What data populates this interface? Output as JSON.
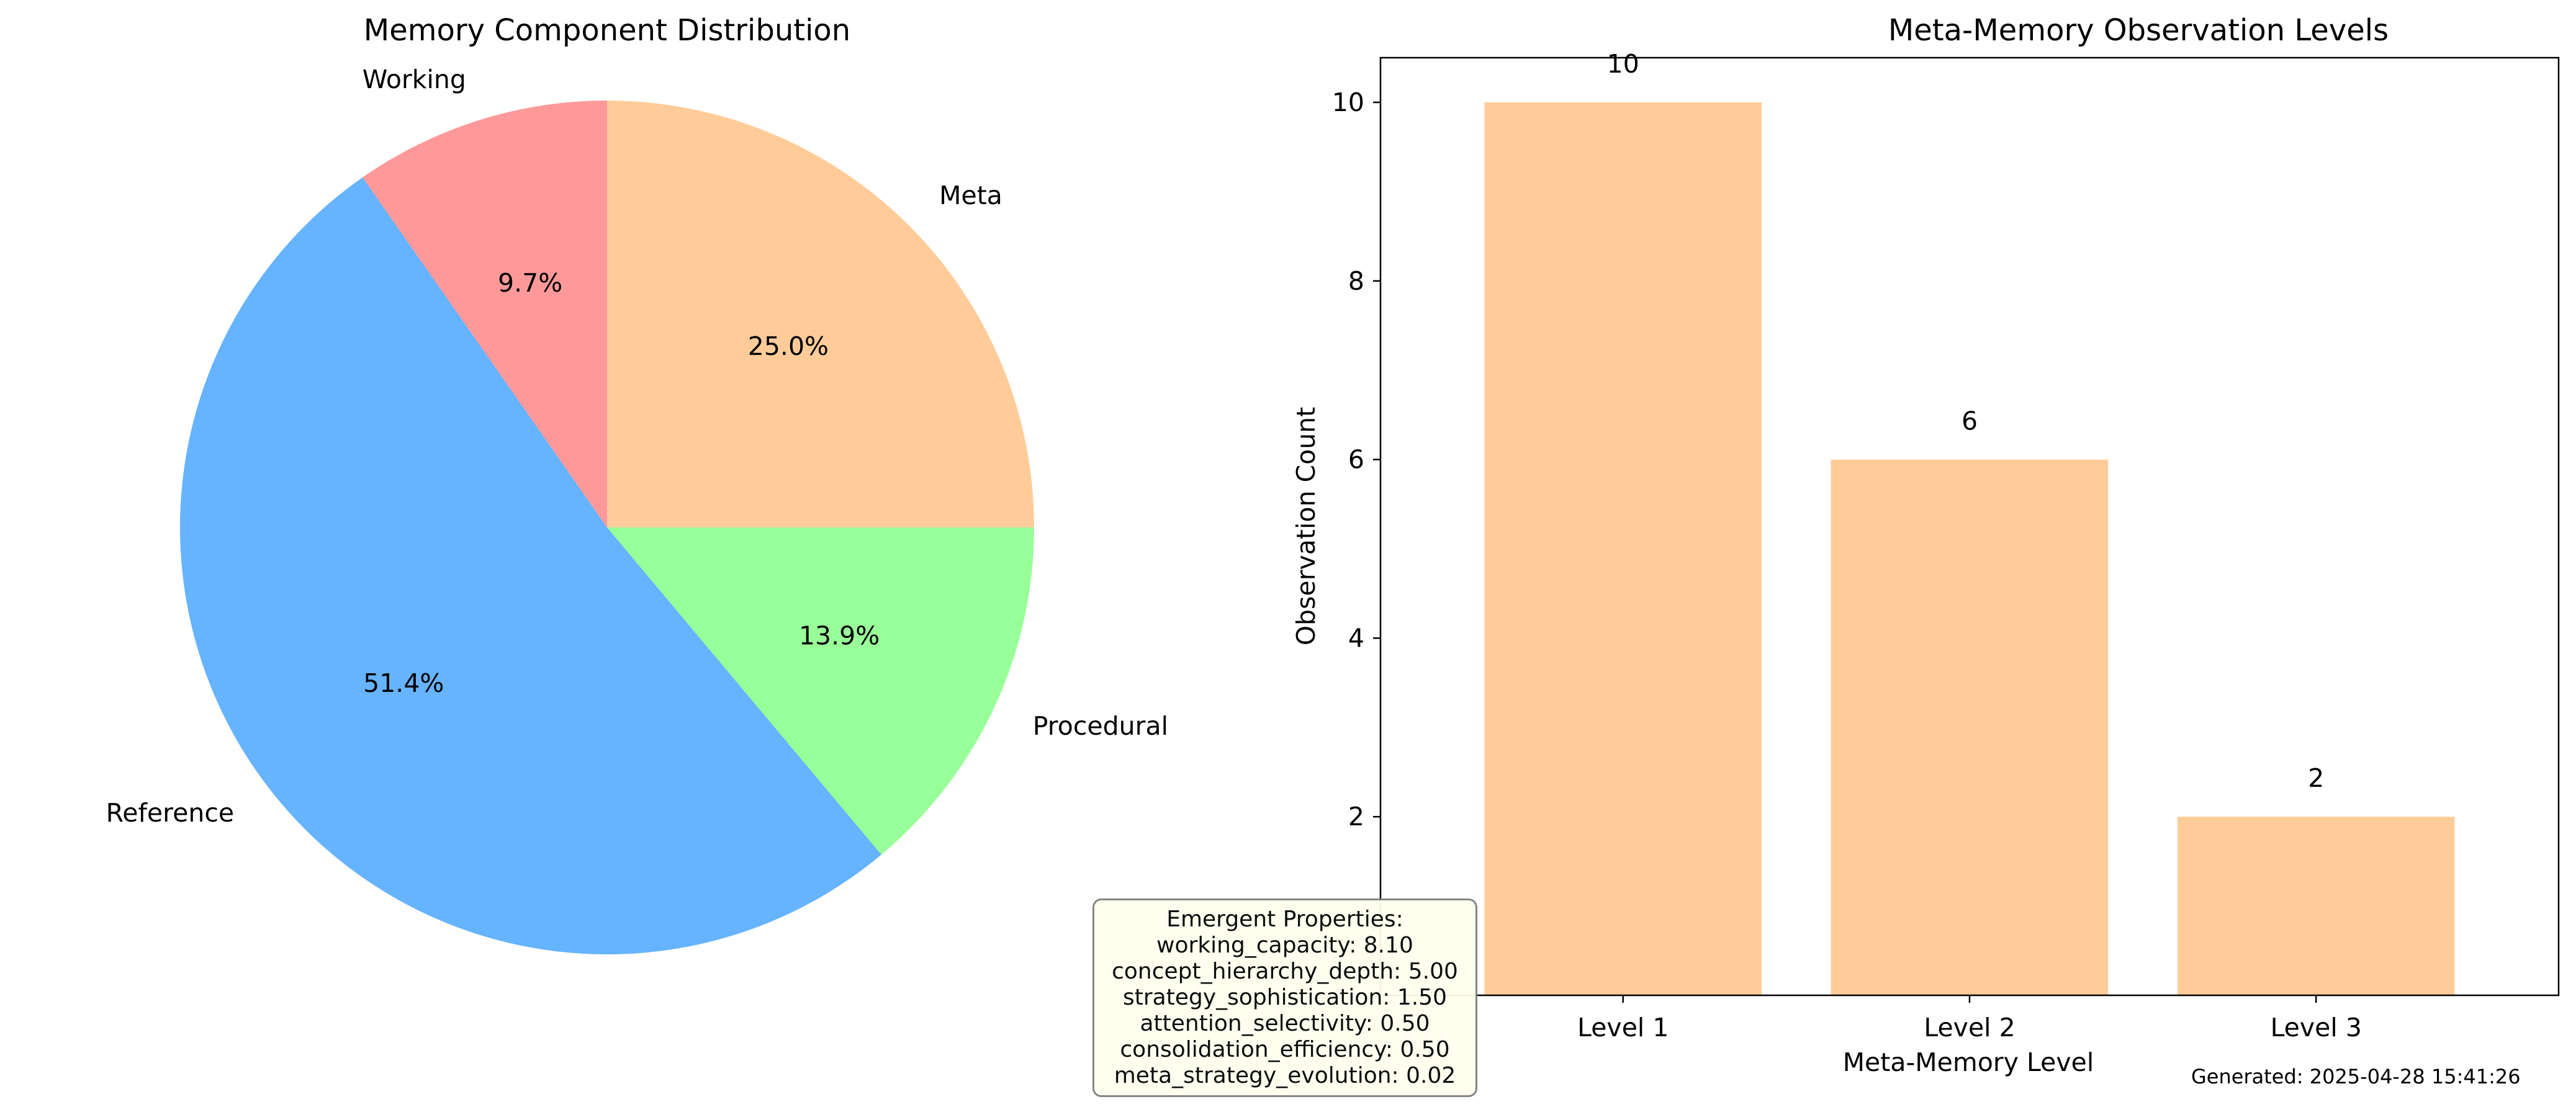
{
  "chart_data": [
    {
      "type": "pie",
      "title": "Memory Component Distribution",
      "slices": [
        {
          "label": "Meta",
          "percent": 25.0,
          "pct_label": "25.0%",
          "color": "#ffcc99"
        },
        {
          "label": "Procedural",
          "percent": 13.9,
          "pct_label": "13.9%",
          "color": "#99ff99"
        },
        {
          "label": "Reference",
          "percent": 51.4,
          "pct_label": "51.4%",
          "color": "#66b3ff"
        },
        {
          "label": "Working",
          "percent": 9.7,
          "pct_label": "9.7%",
          "color": "#ff9999"
        }
      ]
    },
    {
      "type": "bar",
      "title": "Meta-Memory Observation Levels",
      "categories": [
        "Level 1",
        "Level 2",
        "Level 3"
      ],
      "values": [
        10,
        6,
        2
      ],
      "value_labels": [
        "10",
        "6",
        "2"
      ],
      "xlabel": "Meta-Memory Level",
      "ylabel": "Observation Count",
      "ylim": [
        0,
        10.5
      ],
      "yticks": [
        2,
        4,
        6,
        8,
        10
      ],
      "ytick_labels": [
        "2",
        "4",
        "6",
        "8",
        "10"
      ],
      "bar_color": "#ffcc99",
      "grid": false
    }
  ],
  "emergent_properties": {
    "heading": "Emergent Properties:",
    "lines": [
      "working_capacity: 8.10",
      "concept_hierarchy_depth: 5.00",
      "strategy_sophistication: 1.50",
      "attention_selectivity: 0.50",
      "consolidation_efficiency: 0.50",
      "meta_strategy_evolution: 0.02"
    ]
  },
  "footer": "Generated: 2025-04-28 15:41:26"
}
